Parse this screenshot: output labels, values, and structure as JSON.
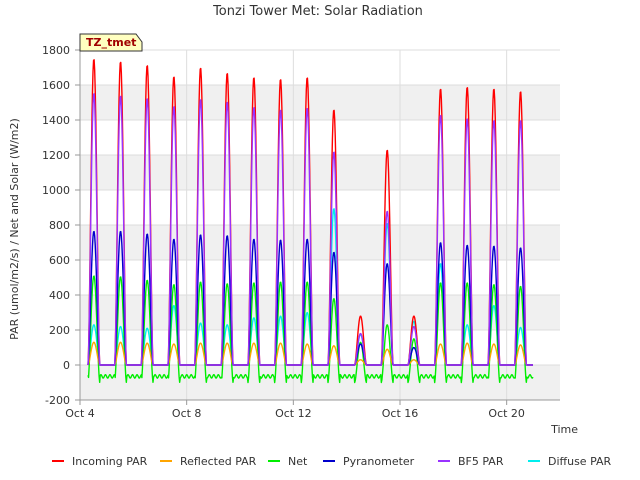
{
  "chart_data": {
    "type": "line",
    "title": "Tonzi Tower Met: Solar Radiation",
    "xlabel": "Time",
    "ylabel": "PAR (umol/m2/s) / Net and Solar (W/m2)",
    "badge": "TZ_tmet",
    "ylim": [
      -200,
      1800
    ],
    "yticks": [
      -200,
      0,
      200,
      400,
      600,
      800,
      1000,
      1200,
      1400,
      1600,
      1800
    ],
    "xlim": [
      "2023-10-04",
      "2023-10-22"
    ],
    "xticks": [
      {
        "x": 4,
        "label": "Oct 4"
      },
      {
        "x": 8,
        "label": "Oct 8"
      },
      {
        "x": 12,
        "label": "Oct 12"
      },
      {
        "x": 16,
        "label": "Oct 16"
      },
      {
        "x": 20,
        "label": "Oct 20"
      }
    ],
    "grid": true,
    "legend_position": "bottom",
    "night_values": {
      "Incoming PAR": 0,
      "Reflected PAR": 0,
      "Net": -65,
      "Pyranometer": 0,
      "BF5 PAR": 0,
      "Diffuse PAR": 0
    },
    "days": [
      "Oct 4",
      "Oct 5",
      "Oct 6",
      "Oct 7",
      "Oct 8",
      "Oct 9",
      "Oct 10",
      "Oct 11",
      "Oct 12",
      "Oct 13",
      "Oct 14",
      "Oct 15",
      "Oct 16",
      "Oct 17",
      "Oct 18",
      "Oct 19",
      "Oct 20",
      "Oct 21"
    ],
    "series": [
      {
        "name": "Incoming PAR",
        "color": "#ff0000",
        "daily_peak": [
          1750,
          1735,
          1715,
          1650,
          1700,
          1670,
          1645,
          1635,
          1645,
          1460,
          280,
          1230,
          280,
          1580,
          1590,
          1580,
          1565,
          0
        ]
      },
      {
        "name": "Reflected PAR",
        "color": "#ffa500",
        "daily_peak": [
          130,
          130,
          125,
          120,
          125,
          125,
          125,
          125,
          120,
          110,
          30,
          90,
          30,
          120,
          125,
          120,
          115,
          0
        ]
      },
      {
        "name": "Net",
        "color": "#00ee00",
        "daily_peak": [
          510,
          505,
          485,
          460,
          475,
          465,
          470,
          475,
          475,
          380,
          130,
          230,
          150,
          470,
          470,
          460,
          450,
          0
        ]
      },
      {
        "name": "Pyranometer",
        "color": "#0000cc",
        "daily_peak": [
          765,
          765,
          750,
          720,
          745,
          740,
          720,
          715,
          720,
          645,
          120,
          580,
          100,
          700,
          685,
          680,
          670,
          0
        ]
      },
      {
        "name": "BF5 PAR",
        "color": "#9933ff",
        "daily_peak": [
          1555,
          1540,
          1525,
          1480,
          1520,
          1505,
          1475,
          1460,
          1470,
          1220,
          180,
          880,
          220,
          1430,
          1410,
          1400,
          1400,
          0
        ]
      },
      {
        "name": "Diffuse PAR",
        "color": "#00eeee",
        "daily_peak": [
          230,
          220,
          210,
          340,
          240,
          230,
          270,
          280,
          300,
          895,
          175,
          810,
          250,
          580,
          230,
          340,
          215,
          0
        ]
      }
    ]
  }
}
